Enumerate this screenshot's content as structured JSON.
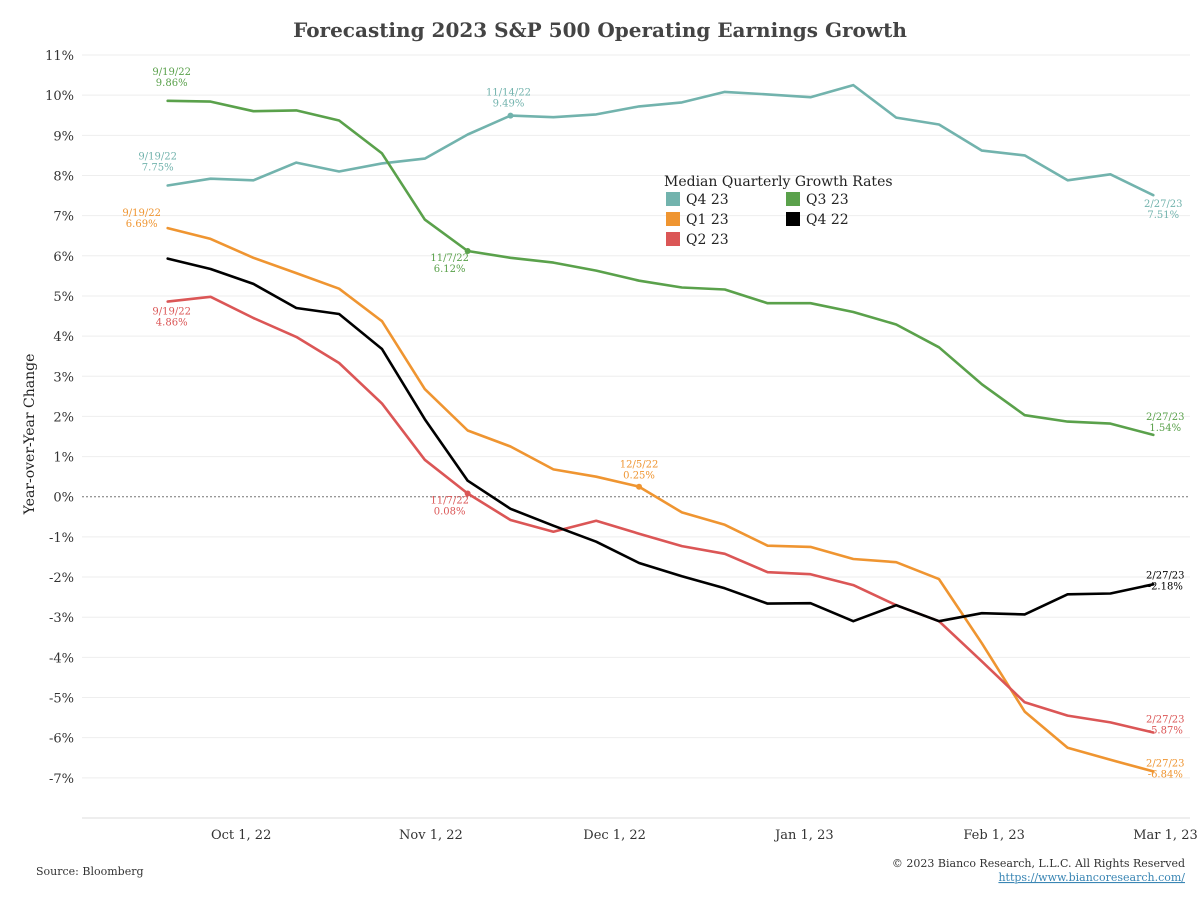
{
  "chart_data": {
    "type": "line",
    "title": "Forecasting 2023 S&P 500 Operating Earnings Growth",
    "ylabel": "Year-over-Year Change",
    "ylim": [
      -8,
      11
    ],
    "xlim": [
      "2022-09-05",
      "2023-03-05"
    ],
    "y_ticks": [
      {
        "value": 11,
        "label": "11%"
      },
      {
        "value": 10,
        "label": "10%"
      },
      {
        "value": 9,
        "label": "9%"
      },
      {
        "value": 8,
        "label": "8%"
      },
      {
        "value": 7,
        "label": "7%"
      },
      {
        "value": 6,
        "label": "6%"
      },
      {
        "value": 5,
        "label": "5%"
      },
      {
        "value": 4,
        "label": "4%"
      },
      {
        "value": 3,
        "label": "3%"
      },
      {
        "value": 2,
        "label": "2%"
      },
      {
        "value": 1,
        "label": "1%"
      },
      {
        "value": 0,
        "label": "0%"
      },
      {
        "value": -1,
        "label": "-1%"
      },
      {
        "value": -2,
        "label": "-2%"
      },
      {
        "value": -3,
        "label": "-3%"
      },
      {
        "value": -4,
        "label": "-4%"
      },
      {
        "value": -5,
        "label": "-5%"
      },
      {
        "value": -6,
        "label": "-6%"
      },
      {
        "value": -7,
        "label": "-7%"
      }
    ],
    "x_ticks": [
      {
        "date": "2022-10-01",
        "label": "Oct 1, 22"
      },
      {
        "date": "2022-11-01",
        "label": "Nov 1, 22"
      },
      {
        "date": "2022-12-01",
        "label": "Dec 1, 22"
      },
      {
        "date": "2023-01-01",
        "label": "Jan 1, 23"
      },
      {
        "date": "2023-02-01",
        "label": "Feb 1, 23"
      },
      {
        "date": "2023-03-01",
        "label": "Mar 1, 23"
      }
    ],
    "x": [
      "2022-09-19",
      "2022-09-26",
      "2022-10-03",
      "2022-10-10",
      "2022-10-17",
      "2022-10-24",
      "2022-10-31",
      "2022-11-07",
      "2022-11-14",
      "2022-11-21",
      "2022-11-28",
      "2022-12-05",
      "2022-12-12",
      "2022-12-19",
      "2022-12-26",
      "2023-01-02",
      "2023-01-09",
      "2023-01-16",
      "2023-01-23",
      "2023-01-30",
      "2023-02-06",
      "2023-02-13",
      "2023-02-20",
      "2023-02-27"
    ],
    "legend_title": "Median Quarterly Growth Rates",
    "legend_placement": "upper-center",
    "zero_line": true,
    "series": [
      {
        "name": "Q4 23",
        "color": "#72b3ad",
        "values": [
          7.75,
          7.92,
          7.88,
          8.32,
          8.1,
          8.3,
          8.42,
          9.02,
          9.49,
          9.45,
          9.52,
          9.72,
          9.82,
          10.08,
          10.02,
          9.95,
          10.25,
          9.44,
          9.27,
          8.62,
          8.5,
          7.88,
          8.03,
          7.51
        ],
        "annotations": [
          {
            "index": 0,
            "date": "9/19/22",
            "value": "7.75%"
          },
          {
            "index": 8,
            "date": "11/14/22",
            "value": "9.49%"
          },
          {
            "index": 23,
            "date": "2/27/23",
            "value": "7.51%"
          }
        ]
      },
      {
        "name": "Q3 23",
        "color": "#5aa14b",
        "values": [
          9.86,
          9.84,
          9.6,
          9.62,
          9.37,
          8.55,
          6.9,
          6.12,
          5.95,
          5.83,
          5.63,
          5.38,
          5.21,
          5.16,
          4.82,
          4.82,
          4.6,
          4.29,
          3.72,
          2.8,
          2.03,
          1.87,
          1.82,
          1.54
        ],
        "annotations": [
          {
            "index": 0,
            "date": "9/19/22",
            "value": "9.86%"
          },
          {
            "index": 7,
            "date": "11/7/22",
            "value": "6.12%"
          },
          {
            "index": 23,
            "date": "2/27/23",
            "value": "1.54%"
          }
        ]
      },
      {
        "name": "Q1 23",
        "color": "#ef9531",
        "values": [
          6.69,
          6.42,
          5.95,
          5.57,
          5.18,
          4.37,
          2.68,
          1.65,
          1.25,
          0.68,
          0.5,
          0.25,
          -0.39,
          -0.7,
          -1.22,
          -1.25,
          -1.55,
          -1.63,
          -2.05,
          -3.65,
          -5.35,
          -6.25,
          -6.55,
          -6.84
        ],
        "annotations": [
          {
            "index": 0,
            "date": "9/19/22",
            "value": "6.69%"
          },
          {
            "index": 11,
            "date": "12/5/22",
            "value": "0.25%"
          },
          {
            "index": 23,
            "date": "2/27/23",
            "value": "-6.84%"
          }
        ]
      },
      {
        "name": "Q2 23",
        "color": "#db5656",
        "values": [
          4.86,
          4.98,
          4.45,
          3.98,
          3.33,
          2.32,
          0.92,
          0.08,
          -0.58,
          -0.87,
          -0.6,
          -0.92,
          -1.23,
          -1.42,
          -1.88,
          -1.93,
          -2.2,
          -2.7,
          -3.1,
          -4.1,
          -5.12,
          -5.45,
          -5.62,
          -5.87
        ],
        "annotations": [
          {
            "index": 0,
            "date": "9/19/22",
            "value": "4.86%"
          },
          {
            "index": 7,
            "date": "11/7/22",
            "value": "0.08%"
          },
          {
            "index": 23,
            "date": "2/27/23",
            "value": "-5.87%"
          }
        ]
      },
      {
        "name": "Q4 22",
        "color": "#000000",
        "values": [
          5.93,
          5.67,
          5.3,
          4.7,
          4.55,
          3.68,
          1.93,
          0.4,
          -0.3,
          -0.72,
          -1.12,
          -1.65,
          -1.98,
          -2.28,
          -2.66,
          -2.65,
          -3.1,
          -2.7,
          -3.1,
          -2.9,
          -2.93,
          -2.43,
          -2.41,
          -2.18
        ],
        "annotations": [
          {
            "index": 23,
            "date": "2/27/23",
            "value": "-2.18%"
          }
        ]
      }
    ]
  },
  "footer": {
    "source": "Source: Bloomberg",
    "copyright": "© 2023 Bianco Research, L.L.C. All Rights Reserved",
    "link": "https://www.biancoresearch.com/"
  }
}
